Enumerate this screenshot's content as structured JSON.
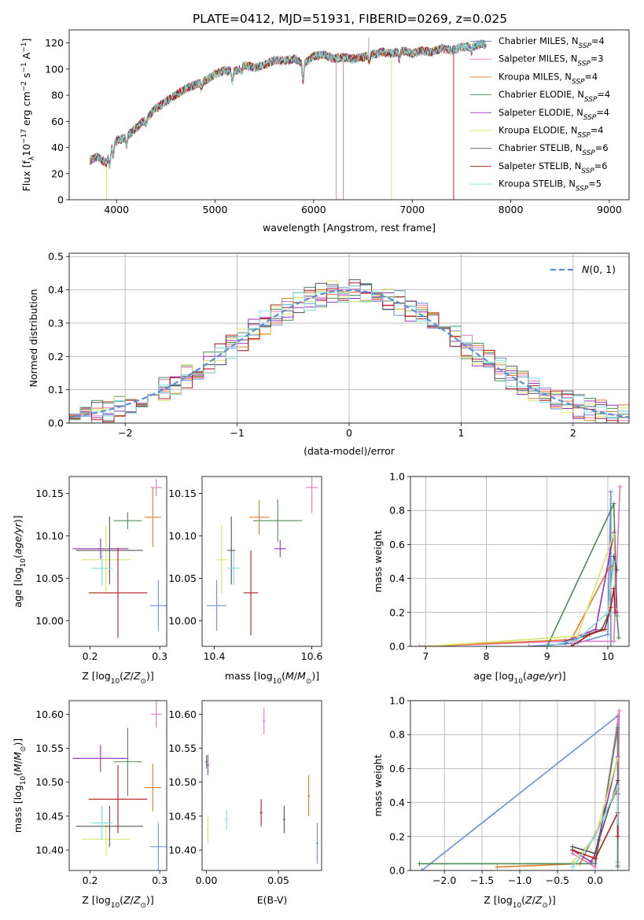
{
  "figure_title": "PLATE=0412, MJD=51931, FIBERID=0269, z=0.025",
  "colors": {
    "Chabrier MILES": "#6a8fd8",
    "Salpeter MILES": "#e377c2",
    "Kroupa MILES": "#e07b2c",
    "Chabrier ELODIE": "#4f8a5b",
    "Salpeter ELODIE": "#9b30b8",
    "Kroupa ELODIE": "#dce36a",
    "Chabrier STELIB": "#555555",
    "Salpeter STELIB": "#b01c1c",
    "Kroupa STELIB": "#7fdde0",
    "normal_fit": "#5b8fd6"
  },
  "chart_data": [
    {
      "id": "spectrum",
      "type": "line",
      "xlabel": "wavelength [Angstrom, rest frame]",
      "ylabel": "Flux [f_λ10^{-17} erg cm^{-2} s^{-1} A^{-1}]",
      "xlim": [
        3520,
        9200
      ],
      "ylim": [
        0,
        130
      ],
      "xticks": [
        4000,
        5000,
        6000,
        7000,
        8000,
        9000
      ],
      "yticks": [
        0,
        20,
        40,
        60,
        80,
        100,
        120
      ],
      "continuum_x": [
        3730,
        3800,
        3900,
        3950,
        4000,
        4100,
        4200,
        4300,
        4400,
        4500,
        4600,
        4700,
        4800,
        4900,
        5000,
        5100,
        5200,
        5300,
        5400,
        5500,
        5600,
        5700,
        5800,
        5900,
        6000,
        6100,
        6200,
        6300,
        6400,
        6500,
        6600,
        6700,
        6800,
        6900,
        7000,
        7100,
        7200,
        7300,
        7400,
        7500,
        7600,
        7700
      ],
      "continuum_y": [
        30,
        33,
        28,
        40,
        45,
        48,
        55,
        62,
        70,
        75,
        80,
        85,
        88,
        91,
        96,
        99,
        98,
        103,
        101,
        103,
        107,
        106,
        108,
        104,
        110,
        111,
        108,
        109,
        108,
        109,
        111,
        113,
        112,
        114,
        112,
        114,
        113,
        116,
        114,
        117,
        117,
        119
      ],
      "legend_items": [
        {
          "pre": "Chabrier MILES, N",
          "sub": "SSP",
          "post": "=4"
        },
        {
          "pre": "Salpeter MILES, N",
          "sub": "SSP",
          "post": "=3"
        },
        {
          "pre": "Kroupa MILES, N",
          "sub": "SSP",
          "post": "=4"
        },
        {
          "pre": "Chabrier ELODIE, N",
          "sub": "SSP",
          "post": "=4"
        },
        {
          "pre": "Salpeter ELODIE, N",
          "sub": "SSP",
          "post": "=4"
        },
        {
          "pre": "Kroupa ELODIE, N",
          "sub": "SSP",
          "post": "=4"
        },
        {
          "pre": "Chabrier STELIB, N",
          "sub": "SSP",
          "post": "=6"
        },
        {
          "pre": "Salpeter STELIB, N",
          "sub": "SSP",
          "post": "=6"
        },
        {
          "pre": "Kroupa STELIB, N",
          "sub": "SSP",
          "post": "=5"
        }
      ],
      "legend_placement": "right"
    },
    {
      "id": "residuals",
      "type": "step-histogram",
      "xlabel": "(data-model)/error",
      "ylabel": "Normed distribution",
      "xlim": [
        -2.5,
        2.5
      ],
      "ylim": [
        0,
        0.51
      ],
      "xticks": [
        -2,
        -1,
        0,
        1,
        2
      ],
      "yticks": [
        0.0,
        0.1,
        0.2,
        0.3,
        0.4,
        0.5
      ],
      "grid": true,
      "bin_width": 0.1,
      "legend": "N(0,1)",
      "legend_placement": "top-right"
    },
    {
      "id": "age_vs_Z",
      "type": "errorbar",
      "xlabel": "Z [log10(Z/Z⊙)]",
      "ylabel": "age [log10(age/yr)]",
      "xlim": [
        0.17,
        0.31
      ],
      "ylim": [
        9.97,
        10.17
      ],
      "xticks": [
        0.2,
        0.3
      ],
      "yticks": [
        10.0,
        10.05,
        10.1,
        10.15
      ],
      "points": [
        {
          "name": "Chabrier MILES",
          "x": 0.298,
          "xerr": 0.012,
          "y": 10.018,
          "yerr": 0.03
        },
        {
          "name": "Salpeter MILES",
          "x": 0.295,
          "xerr": 0.008,
          "y": 10.157,
          "yerr": 0.01
        },
        {
          "name": "Kroupa MILES",
          "x": 0.29,
          "xerr": 0.012,
          "y": 10.122,
          "yerr": 0.035
        },
        {
          "name": "Chabrier ELODIE",
          "x": 0.254,
          "xerr": 0.02,
          "y": 10.118,
          "yerr": 0.01
        },
        {
          "name": "Salpeter ELODIE",
          "x": 0.215,
          "xerr": 0.04,
          "y": 10.085,
          "yerr": 0.012
        },
        {
          "name": "Kroupa ELODIE",
          "x": 0.223,
          "xerr": 0.035,
          "y": 10.072,
          "yerr": 0.04
        },
        {
          "name": "Chabrier STELIB",
          "x": 0.228,
          "xerr": 0.048,
          "y": 10.083,
          "yerr": 0.04
        },
        {
          "name": "Salpeter STELIB",
          "x": 0.24,
          "xerr": 0.042,
          "y": 10.033,
          "yerr": 0.053
        },
        {
          "name": "Kroupa STELIB",
          "x": 0.217,
          "xerr": 0.015,
          "y": 10.062,
          "yerr": 0.02
        }
      ]
    },
    {
      "id": "age_vs_mass",
      "type": "errorbar",
      "xlabel": "mass [log10(M/M⊙)]",
      "xlim": [
        0.0,
        1.0
      ],
      "ylim": [
        9.97,
        10.17
      ],
      "xticks": [
        10.4,
        10.6
      ],
      "yticks": [
        10.0,
        10.05,
        10.1,
        10.15
      ],
      "points": [
        {
          "name": "Chabrier MILES",
          "x": 10.405,
          "xerr": 0.02,
          "y": 10.018,
          "yerr": 0.03
        },
        {
          "name": "Salpeter MILES",
          "x": 10.6,
          "xerr": 0.012,
          "y": 10.157,
          "yerr": 0.03
        },
        {
          "name": "Kroupa MILES",
          "x": 10.492,
          "xerr": 0.02,
          "y": 10.122,
          "yerr": 0.02
        },
        {
          "name": "Chabrier ELODIE",
          "x": 10.53,
          "xerr": 0.05,
          "y": 10.118,
          "yerr": 0.025
        },
        {
          "name": "Salpeter ELODIE",
          "x": 10.535,
          "xerr": 0.012,
          "y": 10.085,
          "yerr": 0.01
        },
        {
          "name": "Kroupa ELODIE",
          "x": 10.415,
          "xerr": 0.012,
          "y": 10.072,
          "yerr": 0.04
        },
        {
          "name": "Chabrier STELIB",
          "x": 10.435,
          "xerr": 0.008,
          "y": 10.083,
          "yerr": 0.04
        },
        {
          "name": "Salpeter STELIB",
          "x": 10.475,
          "xerr": 0.015,
          "y": 10.033,
          "yerr": 0.05
        },
        {
          "name": "Kroupa STELIB",
          "x": 10.44,
          "xerr": 0.012,
          "y": 10.062,
          "yerr": 0.02
        }
      ]
    },
    {
      "id": "massweight_vs_age",
      "type": "line",
      "xlabel": "age [log10(age/yr)]",
      "ylabel": "mass weight",
      "xlim": [
        6.75,
        10.35
      ],
      "ylim": [
        0,
        1
      ],
      "xticks": [
        7,
        8,
        9,
        10
      ],
      "yticks": [
        0.0,
        0.2,
        0.4,
        0.6,
        0.8,
        1.0
      ],
      "grid": true,
      "series": [
        {
          "name": "Chabrier MILES",
          "x": [
            8.7,
            9.5,
            10.0,
            10.05,
            10.05
          ],
          "y": [
            0.0,
            0.02,
            0.07,
            0.91,
            0.0
          ]
        },
        {
          "name": "Salpeter MILES",
          "x": [
            6.9,
            9.3,
            10.1,
            10.2
          ],
          "y": [
            0.0,
            0.03,
            0.03,
            0.94
          ]
        },
        {
          "name": "Kroupa MILES",
          "x": [
            7.0,
            9.4,
            10.0,
            10.1
          ],
          "y": [
            0.0,
            0.04,
            0.45,
            0.48
          ]
        },
        {
          "name": "Chabrier ELODIE",
          "x": [
            9.0,
            10.1,
            10.15,
            10.18
          ],
          "y": [
            0.0,
            0.84,
            0.18,
            0.05
          ]
        },
        {
          "name": "Salpeter ELODIE",
          "x": [
            9.3,
            9.8,
            10.1,
            10.15
          ],
          "y": [
            0.03,
            0.1,
            0.67,
            0.2
          ]
        },
        {
          "name": "Kroupa ELODIE",
          "x": [
            7.0,
            9.5,
            10.1,
            10.12
          ],
          "y": [
            0.0,
            0.06,
            0.66,
            0.22
          ]
        },
        {
          "name": "Chabrier STELIB",
          "x": [
            9.3,
            9.6,
            9.9,
            10.0,
            10.1,
            10.15
          ],
          "y": [
            0.02,
            0.06,
            0.1,
            0.18,
            0.53,
            0.45
          ]
        },
        {
          "name": "Salpeter STELIB",
          "x": [
            9.4,
            9.7,
            9.95,
            10.05,
            10.1,
            10.12
          ],
          "y": [
            0.0,
            0.07,
            0.1,
            0.23,
            0.34,
            0.2
          ]
        },
        {
          "name": "Kroupa STELIB",
          "x": [
            9.0,
            9.5,
            10.0,
            10.1
          ],
          "y": [
            0.0,
            0.04,
            0.2,
            0.5
          ]
        }
      ]
    },
    {
      "id": "mass_vs_Z",
      "type": "errorbar",
      "xlabel": "Z [log10(Z/Z⊙)]",
      "ylabel": "mass [log10(M/M⊙)]",
      "xlim": [
        0.17,
        0.31
      ],
      "ylim": [
        10.37,
        10.62
      ],
      "xticks": [
        0.2,
        0.3
      ],
      "yticks": [
        10.4,
        10.45,
        10.5,
        10.55,
        10.6
      ],
      "points": [
        {
          "name": "Chabrier MILES",
          "x": 0.298,
          "xerr": 0.012,
          "y": 10.405,
          "yerr": 0.035
        },
        {
          "name": "Salpeter MILES",
          "x": 0.295,
          "xerr": 0.008,
          "y": 10.6,
          "yerr": 0.02
        },
        {
          "name": "Kroupa MILES",
          "x": 0.29,
          "xerr": 0.012,
          "y": 10.492,
          "yerr": 0.035
        },
        {
          "name": "Chabrier ELODIE",
          "x": 0.254,
          "xerr": 0.02,
          "y": 10.53,
          "yerr": 0.05
        },
        {
          "name": "Salpeter ELODIE",
          "x": 0.215,
          "xerr": 0.04,
          "y": 10.535,
          "yerr": 0.02
        },
        {
          "name": "Kroupa ELODIE",
          "x": 0.223,
          "xerr": 0.035,
          "y": 10.416,
          "yerr": 0.025
        },
        {
          "name": "Chabrier STELIB",
          "x": 0.228,
          "xerr": 0.048,
          "y": 10.435,
          "yerr": 0.03
        },
        {
          "name": "Salpeter STELIB",
          "x": 0.24,
          "xerr": 0.042,
          "y": 10.475,
          "yerr": 0.05
        },
        {
          "name": "Kroupa STELIB",
          "x": 0.217,
          "xerr": 0.015,
          "y": 10.44,
          "yerr": 0.025
        }
      ]
    },
    {
      "id": "mass_vs_EBV",
      "type": "errorbar",
      "xlabel": "E(B-V)",
      "xlim": [
        -0.003,
        0.08
      ],
      "ylim": [
        10.37,
        10.62
      ],
      "xticks": [
        0.0,
        0.05
      ],
      "yticks": [
        10.4,
        10.45,
        10.5,
        10.55,
        10.6
      ],
      "points": [
        {
          "name": "Chabrier MILES",
          "x": 0.077,
          "y": 10.41,
          "yerr": 0.03
        },
        {
          "name": "Salpeter MILES",
          "x": 0.04,
          "y": 10.59,
          "yerr": 0.02
        },
        {
          "name": "Kroupa MILES",
          "x": 0.071,
          "y": 10.48,
          "yerr": 0.03
        },
        {
          "name": "Chabrier ELODIE",
          "x": 0.0,
          "y": 10.53,
          "yerr": 0.01
        },
        {
          "name": "Salpeter ELODIE",
          "x": 0.001,
          "y": 10.525,
          "yerr": 0.015
        },
        {
          "name": "Kroupa ELODIE",
          "x": 0.001,
          "y": 10.43,
          "yerr": 0.02
        },
        {
          "name": "Chabrier STELIB",
          "x": 0.054,
          "y": 10.445,
          "yerr": 0.02
        },
        {
          "name": "Salpeter STELIB",
          "x": 0.038,
          "y": 10.455,
          "yerr": 0.02
        },
        {
          "name": "Kroupa STELIB",
          "x": 0.014,
          "y": 10.445,
          "yerr": 0.015
        }
      ]
    },
    {
      "id": "massweight_vs_Z",
      "type": "line",
      "xlabel": "Z [log10(Z/Z⊙)]",
      "ylabel": "mass weight",
      "xlim": [
        -2.45,
        0.45
      ],
      "ylim": [
        0,
        1
      ],
      "xticks": [
        -2.0,
        -1.5,
        -1.0,
        -0.5,
        0.0
      ],
      "yticks": [
        0.0,
        0.2,
        0.4,
        0.6,
        0.8,
        1.0
      ],
      "grid": true,
      "series": [
        {
          "name": "Chabrier MILES",
          "x": [
            -2.3,
            0.3,
            0.3
          ],
          "y": [
            0.0,
            0.91,
            0.05
          ]
        },
        {
          "name": "Salpeter MILES",
          "x": [
            -0.3,
            0.0,
            0.32,
            0.3
          ],
          "y": [
            0.1,
            0.02,
            0.94,
            0.03
          ]
        },
        {
          "name": "Kroupa MILES",
          "x": [
            -1.3,
            -0.2,
            0.3,
            0.3
          ],
          "y": [
            0.02,
            0.04,
            0.48,
            0.45
          ]
        },
        {
          "name": "Chabrier ELODIE",
          "x": [
            -2.33,
            0.0,
            0.3,
            0.3
          ],
          "y": [
            0.04,
            0.04,
            0.84,
            0.02
          ]
        },
        {
          "name": "Salpeter ELODIE",
          "x": [
            -0.3,
            -0.05,
            0.0,
            0.3
          ],
          "y": [
            0.12,
            0.05,
            0.1,
            0.67
          ]
        },
        {
          "name": "Kroupa ELODIE",
          "x": [
            -0.3,
            0.0,
            0.3
          ],
          "y": [
            0.05,
            0.2,
            0.66
          ]
        },
        {
          "name": "Chabrier STELIB",
          "x": [
            -0.3,
            0.0,
            0.05,
            0.3,
            0.3
          ],
          "y": [
            0.14,
            0.1,
            0.18,
            0.53,
            0.45
          ]
        },
        {
          "name": "Salpeter STELIB",
          "x": [
            -0.3,
            0.0,
            0.3,
            0.3
          ],
          "y": [
            0.12,
            0.07,
            0.34,
            0.2
          ]
        },
        {
          "name": "Kroupa STELIB",
          "x": [
            -0.3,
            0.0,
            0.3,
            0.3
          ],
          "y": [
            0.02,
            0.2,
            0.5,
            0.28
          ]
        }
      ]
    }
  ]
}
